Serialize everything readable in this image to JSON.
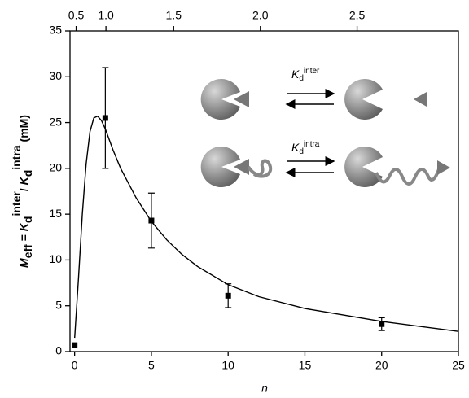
{
  "chart_data": {
    "type": "scatter",
    "xlabel": "n",
    "ylabel_parts": [
      "M",
      "eff",
      " = ",
      "K",
      "d",
      "inter",
      "/ ",
      "K",
      "d",
      "intra",
      " (mM)"
    ],
    "xlim": [
      -0.3,
      25
    ],
    "ylim": [
      0,
      35
    ],
    "xticks": [
      0,
      5,
      10,
      15,
      20,
      25
    ],
    "yticks": [
      0,
      5,
      10,
      15,
      20,
      25,
      30,
      35
    ],
    "x2ticks": [
      {
        "value": 0.5,
        "label": "0.5"
      },
      {
        "value": 1.0,
        "label": "1.0"
      },
      {
        "value": 1.5,
        "label": "1.5"
      },
      {
        "value": 2.0,
        "label": "2.0"
      },
      {
        "value": 2.5,
        "label": "2.5"
      }
    ],
    "x2_at_n": [
      0.1,
      2.04,
      6.45,
      12.1,
      18.4
    ],
    "points": {
      "x": [
        0,
        2,
        5,
        10,
        20
      ],
      "y": [
        0.7,
        25.5,
        14.3,
        6.1,
        3.0
      ],
      "errors": [
        null,
        5.5,
        3.0,
        1.3,
        0.7
      ],
      "color": "#000000"
    },
    "fit": {
      "x": [
        0,
        0.25,
        0.5,
        0.75,
        1,
        1.25,
        1.5,
        1.75,
        2,
        2.5,
        3,
        4,
        5,
        6,
        7,
        8,
        10,
        12,
        15,
        20,
        25
      ],
      "y": [
        1.5,
        8,
        15,
        20.5,
        24,
        25.5,
        25.7,
        25.2,
        24.3,
        22,
        20,
        16.8,
        14.2,
        12.2,
        10.6,
        9.3,
        7.3,
        6,
        4.7,
        3.3,
        2.2
      ],
      "color": "#000000"
    },
    "diagram": {
      "inter": [
        "K",
        "d",
        "inter"
      ],
      "intra": [
        "K",
        "d",
        "intra"
      ]
    }
  }
}
